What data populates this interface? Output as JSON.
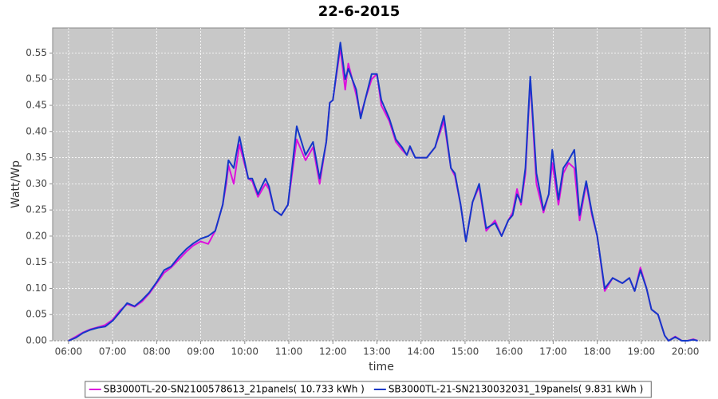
{
  "chart_data": {
    "type": "line",
    "title": "22-6-2015",
    "x_label": "time",
    "y_label": "Watt/Wp",
    "xlim": [
      5.64,
      20.56
    ],
    "xticks": [
      {
        "value": 6,
        "label": "06:00"
      },
      {
        "value": 7,
        "label": "07:00"
      },
      {
        "value": 8,
        "label": "08:00"
      },
      {
        "value": 9,
        "label": "09:00"
      },
      {
        "value": 10,
        "label": "10:00"
      },
      {
        "value": 11,
        "label": "11:00"
      },
      {
        "value": 12,
        "label": "12:00"
      },
      {
        "value": 13,
        "label": "13:00"
      },
      {
        "value": 14,
        "label": "14:00"
      },
      {
        "value": 15,
        "label": "15:00"
      },
      {
        "value": 16,
        "label": "16:00"
      },
      {
        "value": 17,
        "label": "17:00"
      },
      {
        "value": 18,
        "label": "18:00"
      },
      {
        "value": 19,
        "label": "19:00"
      },
      {
        "value": 20,
        "label": "20:00"
      }
    ],
    "ylim": [
      0,
      0.598
    ],
    "yticks": [
      {
        "value": 0,
        "label": "0.00"
      },
      {
        "value": 0.05,
        "label": "0.05"
      },
      {
        "value": 0.1,
        "label": "0.10"
      },
      {
        "value": 0.15,
        "label": "0.15"
      },
      {
        "value": 0.2,
        "label": "0.20"
      },
      {
        "value": 0.25,
        "label": "0.25"
      },
      {
        "value": 0.3,
        "label": "0.30"
      },
      {
        "value": 0.35,
        "label": "0.35"
      },
      {
        "value": 0.4,
        "label": "0.40"
      },
      {
        "value": 0.45,
        "label": "0.45"
      },
      {
        "value": 0.5,
        "label": "0.50"
      },
      {
        "value": 0.55,
        "label": "0.55"
      }
    ],
    "grid": true,
    "legend": "bottom",
    "x": [
      6.0,
      6.17,
      6.33,
      6.5,
      6.67,
      6.83,
      7.0,
      7.17,
      7.33,
      7.5,
      7.67,
      7.83,
      8.0,
      8.17,
      8.33,
      8.5,
      8.67,
      8.83,
      9.0,
      9.17,
      9.33,
      9.5,
      9.58,
      9.63,
      9.75,
      9.88,
      10.08,
      10.17,
      10.3,
      10.47,
      10.55,
      10.67,
      10.83,
      10.98,
      11.18,
      11.38,
      11.55,
      11.7,
      11.85,
      11.93,
      12.0,
      12.17,
      12.28,
      12.35,
      12.53,
      12.63,
      12.73,
      12.88,
      13.0,
      13.1,
      13.28,
      13.43,
      13.57,
      13.68,
      13.75,
      13.87,
      14.13,
      14.32,
      14.52,
      14.68,
      14.77,
      14.9,
      15.02,
      15.17,
      15.32,
      15.48,
      15.68,
      15.83,
      15.98,
      16.08,
      16.18,
      16.27,
      16.37,
      16.48,
      16.62,
      16.78,
      16.9,
      16.98,
      17.12,
      17.23,
      17.35,
      17.48,
      17.6,
      17.75,
      17.88,
      18.0,
      18.17,
      18.35,
      18.57,
      18.73,
      18.85,
      18.98,
      19.12,
      19.23,
      19.38,
      19.53,
      19.62,
      19.77,
      19.92,
      20.05,
      20.18,
      20.28
    ],
    "series": [
      {
        "name": "SB3000TL-20-SN2100578613_21panels( 10.733 kWh )",
        "color": "#dd11dd",
        "values": [
          0,
          0.008,
          0.016,
          0.022,
          0.026,
          0.03,
          0.04,
          0.058,
          0.07,
          0.065,
          0.075,
          0.09,
          0.11,
          0.13,
          0.14,
          0.155,
          0.17,
          0.182,
          0.19,
          0.185,
          0.21,
          0.26,
          0.3,
          0.335,
          0.3,
          0.375,
          0.31,
          0.305,
          0.275,
          0.3,
          0.29,
          0.25,
          0.24,
          0.26,
          0.385,
          0.345,
          0.37,
          0.3,
          0.38,
          0.455,
          0.46,
          0.56,
          0.48,
          0.53,
          0.47,
          0.43,
          0.46,
          0.5,
          0.51,
          0.45,
          0.42,
          0.38,
          0.365,
          0.355,
          0.37,
          0.35,
          0.35,
          0.37,
          0.42,
          0.33,
          0.315,
          0.26,
          0.19,
          0.265,
          0.295,
          0.21,
          0.23,
          0.2,
          0.23,
          0.245,
          0.29,
          0.26,
          0.32,
          0.5,
          0.3,
          0.245,
          0.28,
          0.34,
          0.26,
          0.32,
          0.34,
          0.33,
          0.23,
          0.3,
          0.24,
          0.2,
          0.095,
          0.12,
          0.11,
          0.12,
          0.095,
          0.14,
          0.1,
          0.06,
          0.05,
          0.01,
          0,
          0.008,
          0,
          0,
          0.003,
          0
        ]
      },
      {
        "name": "SB3000TL-21-SN2130032031_19panels( 9.831 kWh )",
        "color": "#1438c8",
        "values": [
          0,
          0.006,
          0.015,
          0.021,
          0.025,
          0.027,
          0.038,
          0.055,
          0.072,
          0.066,
          0.078,
          0.092,
          0.112,
          0.135,
          0.142,
          0.16,
          0.175,
          0.186,
          0.195,
          0.2,
          0.21,
          0.26,
          0.31,
          0.345,
          0.33,
          0.39,
          0.31,
          0.31,
          0.28,
          0.31,
          0.295,
          0.25,
          0.24,
          0.26,
          0.41,
          0.355,
          0.38,
          0.31,
          0.38,
          0.455,
          0.46,
          0.57,
          0.5,
          0.52,
          0.48,
          0.425,
          0.46,
          0.51,
          0.51,
          0.46,
          0.425,
          0.385,
          0.37,
          0.355,
          0.372,
          0.35,
          0.35,
          0.37,
          0.43,
          0.33,
          0.32,
          0.26,
          0.19,
          0.265,
          0.3,
          0.215,
          0.225,
          0.2,
          0.23,
          0.24,
          0.28,
          0.265,
          0.33,
          0.505,
          0.32,
          0.25,
          0.28,
          0.365,
          0.27,
          0.33,
          0.345,
          0.365,
          0.24,
          0.305,
          0.245,
          0.2,
          0.1,
          0.12,
          0.11,
          0.12,
          0.095,
          0.135,
          0.1,
          0.06,
          0.05,
          0.01,
          0,
          0.007,
          0,
          0,
          0.002,
          0
        ]
      }
    ]
  }
}
